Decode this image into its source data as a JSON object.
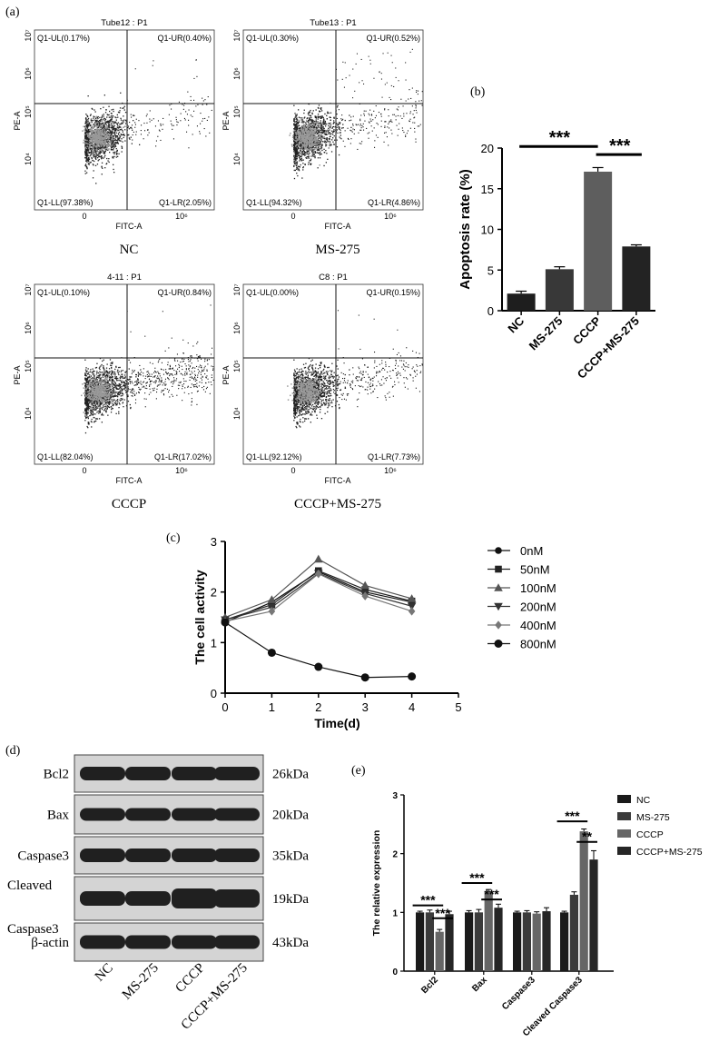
{
  "panel_labels": {
    "a": "(a)",
    "b": "(b)",
    "c": "(c)",
    "d": "(d)",
    "e": "(e)"
  },
  "flow_panels": [
    {
      "title": "Tube12 : P1",
      "caption": "NC",
      "quadrants": {
        "UL": "Q1-UL(0.17%)",
        "UR": "Q1-UR(0.40%)",
        "LL": "Q1-LL(97.38%)",
        "LR": "Q1-LR(2.05%)"
      }
    },
    {
      "title": "Tube13 : P1",
      "caption": "MS-275",
      "quadrants": {
        "UL": "Q1-UL(0.30%)",
        "UR": "Q1-UR(0.52%)",
        "LL": "Q1-LL(94.32%)",
        "LR": "Q1-LR(4.86%)"
      }
    },
    {
      "title": "4-11 : P1",
      "caption": "CCCP",
      "quadrants": {
        "UL": "Q1-UL(0.10%)",
        "UR": "Q1-UR(0.84%)",
        "LL": "Q1-LL(82.04%)",
        "LR": "Q1-LR(17.02%)"
      }
    },
    {
      "title": "C8 : P1",
      "caption": "CCCP+MS-275",
      "quadrants": {
        "UL": "Q1-UL(0.00%)",
        "UR": "Q1-UR(0.15%)",
        "LL": "Q1-LL(92.12%)",
        "LR": "Q1-LR(7.73%)"
      }
    }
  ],
  "flow_axes": {
    "xlabel": "FITC-A",
    "ylabel": "PE-A",
    "xticks": [
      "0",
      "10⁶"
    ],
    "yticks": [
      "10⁴",
      "10⁵",
      "10⁶",
      "10⁷"
    ]
  },
  "blot": {
    "proteins": [
      "Bcl2",
      "Bax",
      "Caspase3",
      "Cleaved\nCaspase3",
      "β-actin"
    ],
    "weights": [
      "26kDa",
      "20kDa",
      "35kDa",
      "19kDa",
      "43kDa"
    ],
    "lanes": [
      "NC",
      "MS-275",
      "CCCP",
      "CCCP+MS-275"
    ]
  },
  "chart_data": [
    {
      "type": "bar",
      "panel": "b",
      "categories": [
        "NC",
        "MS-275",
        "CCCP",
        "CCCP+MS-275"
      ],
      "values": [
        2.1,
        5.1,
        17.1,
        7.9
      ],
      "errors": [
        0.3,
        0.3,
        0.5,
        0.2
      ],
      "colors": [
        "#1e1e1e",
        "#383838",
        "#5e5e5e",
        "#232323"
      ],
      "ylabel": "Apoptosis rate (%)",
      "ylim": [
        0,
        20
      ],
      "yticks": [
        0,
        5,
        10,
        15,
        20
      ],
      "significance": [
        {
          "label": "***",
          "from": 0,
          "to": 2,
          "y": 20.2
        },
        {
          "label": "***",
          "from": 2,
          "to": 3,
          "y": 19.2
        }
      ]
    },
    {
      "type": "line",
      "panel": "c",
      "x": [
        0,
        1,
        2,
        3,
        4
      ],
      "xlim": [
        0,
        5
      ],
      "ylim": [
        0,
        3
      ],
      "xticks": [
        0,
        1,
        2,
        3,
        4,
        5
      ],
      "yticks": [
        0,
        1,
        2,
        3
      ],
      "xlabel": "Time(d)",
      "ylabel": "The cell activity",
      "legend_position": "right",
      "series": [
        {
          "name": "0nM",
          "marker": "circle",
          "color": "#111111",
          "values": [
            1.4,
            1.8,
            2.4,
            2.0,
            1.8
          ]
        },
        {
          "name": "50nM",
          "marker": "square",
          "color": "#222222",
          "values": [
            1.45,
            1.75,
            2.42,
            2.05,
            1.82
          ]
        },
        {
          "name": "100nM",
          "marker": "triangle-up",
          "color": "#555555",
          "values": [
            1.5,
            1.85,
            2.65,
            2.13,
            1.87
          ]
        },
        {
          "name": "200nM",
          "marker": "triangle-down",
          "color": "#333333",
          "values": [
            1.45,
            1.7,
            2.37,
            1.97,
            1.72
          ]
        },
        {
          "name": "400nM",
          "marker": "diamond",
          "color": "#777777",
          "values": [
            1.42,
            1.62,
            2.36,
            1.92,
            1.62
          ]
        },
        {
          "name": "800nM",
          "marker": "circle",
          "color": "#111111",
          "values": [
            1.4,
            0.8,
            0.52,
            0.31,
            0.33
          ]
        }
      ]
    },
    {
      "type": "bar",
      "panel": "e",
      "categories": [
        "Bcl2",
        "Bax",
        "Caspase3",
        "Cleaved Caspase3"
      ],
      "ylabel": "The relative expression",
      "ylim": [
        0,
        3
      ],
      "yticks": [
        0,
        1,
        2,
        3
      ],
      "legend_position": "right",
      "series": [
        {
          "name": "NC",
          "color": "#1a1a1a",
          "values": [
            1.0,
            1.0,
            1.0,
            1.0
          ],
          "errors": [
            0.02,
            0.03,
            0.02,
            0.02
          ]
        },
        {
          "name": "MS-275",
          "color": "#3b3b3b",
          "values": [
            1.0,
            1.0,
            1.0,
            1.3
          ],
          "errors": [
            0.04,
            0.05,
            0.03,
            0.05
          ]
        },
        {
          "name": "CCCP",
          "color": "#666666",
          "values": [
            0.67,
            1.35,
            0.98,
            2.38
          ],
          "errors": [
            0.04,
            0.04,
            0.03,
            0.04
          ]
        },
        {
          "name": "CCCP+MS-275",
          "color": "#262626",
          "values": [
            0.97,
            1.08,
            1.02,
            1.9
          ],
          "errors": [
            0.05,
            0.06,
            0.06,
            0.15
          ]
        }
      ],
      "significance": [
        {
          "label": "***",
          "category": 0,
          "from": 0,
          "to": 2,
          "y": 1.12
        },
        {
          "label": "***",
          "category": 0,
          "from": 2,
          "to": 3,
          "y": 0.9
        },
        {
          "label": "***",
          "category": 1,
          "from": 0,
          "to": 2,
          "y": 1.5
        },
        {
          "label": "***",
          "category": 1,
          "from": 2,
          "to": 3,
          "y": 1.22
        },
        {
          "label": "***",
          "category": 3,
          "from": 0,
          "to": 2,
          "y": 2.55
        },
        {
          "label": "**",
          "category": 3,
          "from": 2,
          "to": 3,
          "y": 2.2
        }
      ]
    }
  ]
}
